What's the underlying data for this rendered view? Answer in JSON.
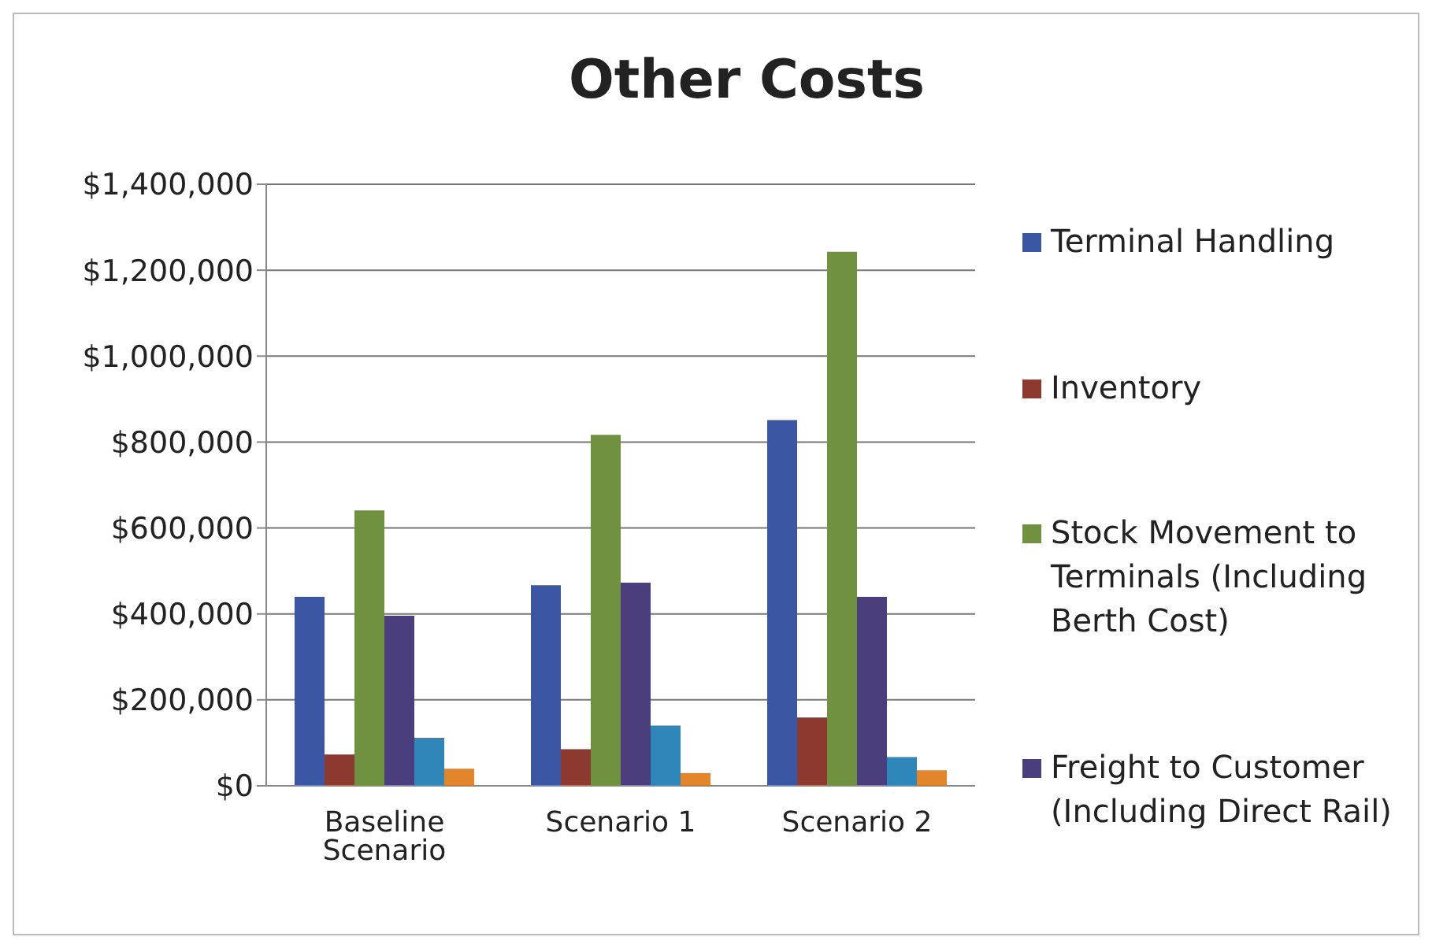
{
  "chart_data": {
    "type": "bar",
    "title": "Other Costs",
    "categories": [
      "Baseline Scenario",
      "Scenario 1",
      "Scenario 2"
    ],
    "series": [
      {
        "name": "Terminal Handling",
        "color": "#3b56a2",
        "values": [
          440000,
          467000,
          851000
        ]
      },
      {
        "name": "Inventory",
        "color": "#8c3a2f",
        "values": [
          73000,
          85000,
          159000
        ]
      },
      {
        "name": "Stock Movement to Terminals (Including Berth Cost)",
        "color": "#6f9140",
        "values": [
          641000,
          817000,
          1243000
        ]
      },
      {
        "name": "Freight to Customer (Including Direct Rail)",
        "color": "#4a3f7c",
        "values": [
          396000,
          473000,
          440000
        ]
      },
      {
        "color": "#2f87b9",
        "values": [
          112000,
          140000,
          67000
        ]
      },
      {
        "color": "#e3862b",
        "values": [
          40000,
          30000,
          36000
        ]
      }
    ],
    "ylim": [
      0,
      1400000
    ],
    "yticks": [
      {
        "value": 0,
        "label": "$0"
      },
      {
        "value": 200000,
        "label": "$200,000"
      },
      {
        "value": 400000,
        "label": "$400,000"
      },
      {
        "value": 600000,
        "label": "$600,000"
      },
      {
        "value": 800000,
        "label": "$800,000"
      },
      {
        "value": 1000000,
        "label": "$1,000,000"
      },
      {
        "value": 1200000,
        "label": "$1,200,000"
      },
      {
        "value": 1400000,
        "label": "$1,400,000"
      }
    ],
    "grid": "y",
    "legend": "right"
  }
}
